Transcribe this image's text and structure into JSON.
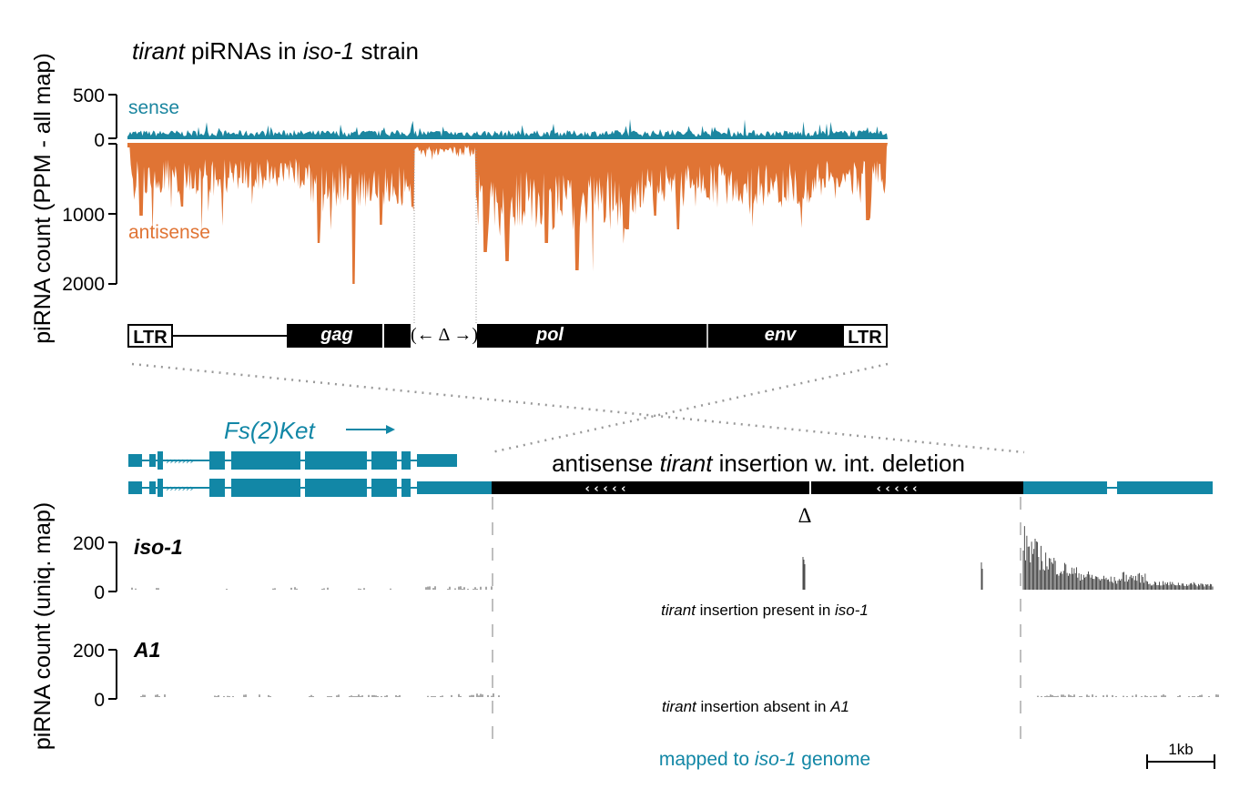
{
  "top": {
    "title": {
      "p1": "tirant",
      "p2": " piRNAs in ",
      "p3": "iso-1",
      "p4": " strain"
    },
    "ylabel": "piRNA count (PPM - all map)",
    "sense_ticks": [
      "500",
      "0"
    ],
    "antisense_ticks": [
      "1000",
      "2000"
    ],
    "sense_label": "sense",
    "antisense_label": "antisense",
    "sense_color": "#1b86a0",
    "antisense_color": "#e07434",
    "element": {
      "ltr_left": "LTR",
      "ltr_right": "LTR",
      "gag": "gag",
      "pol": "pol",
      "env": "env",
      "deletion": "(← Δ →)"
    }
  },
  "bottom": {
    "gene": {
      "name": "Fs(2)Ket",
      "color": "#1287a6"
    },
    "insertion_label": {
      "p1": "antisense ",
      "p2": "tirant",
      "p3": " insertion w. int. deletion"
    },
    "delta": "Δ",
    "insertion_arrows": "‹ ‹ ‹ ‹ ‹",
    "ylabel": "piRNA count (uniq. map)",
    "tracks": [
      {
        "name": "iso-1",
        "ticks": [
          "200",
          "0"
        ],
        "note_p1": "tirant",
        "note_p2": " insertion present in ",
        "note_p3": "iso-1"
      },
      {
        "name": "A1",
        "ticks": [
          "200",
          "0"
        ],
        "note_p1": "tirant",
        "note_p2": " insertion absent in ",
        "note_p3": "A1"
      }
    ],
    "footer": {
      "p1": "mapped to ",
      "p2": "iso-1",
      "p3": " genome"
    },
    "scalebar": "1kb"
  }
}
